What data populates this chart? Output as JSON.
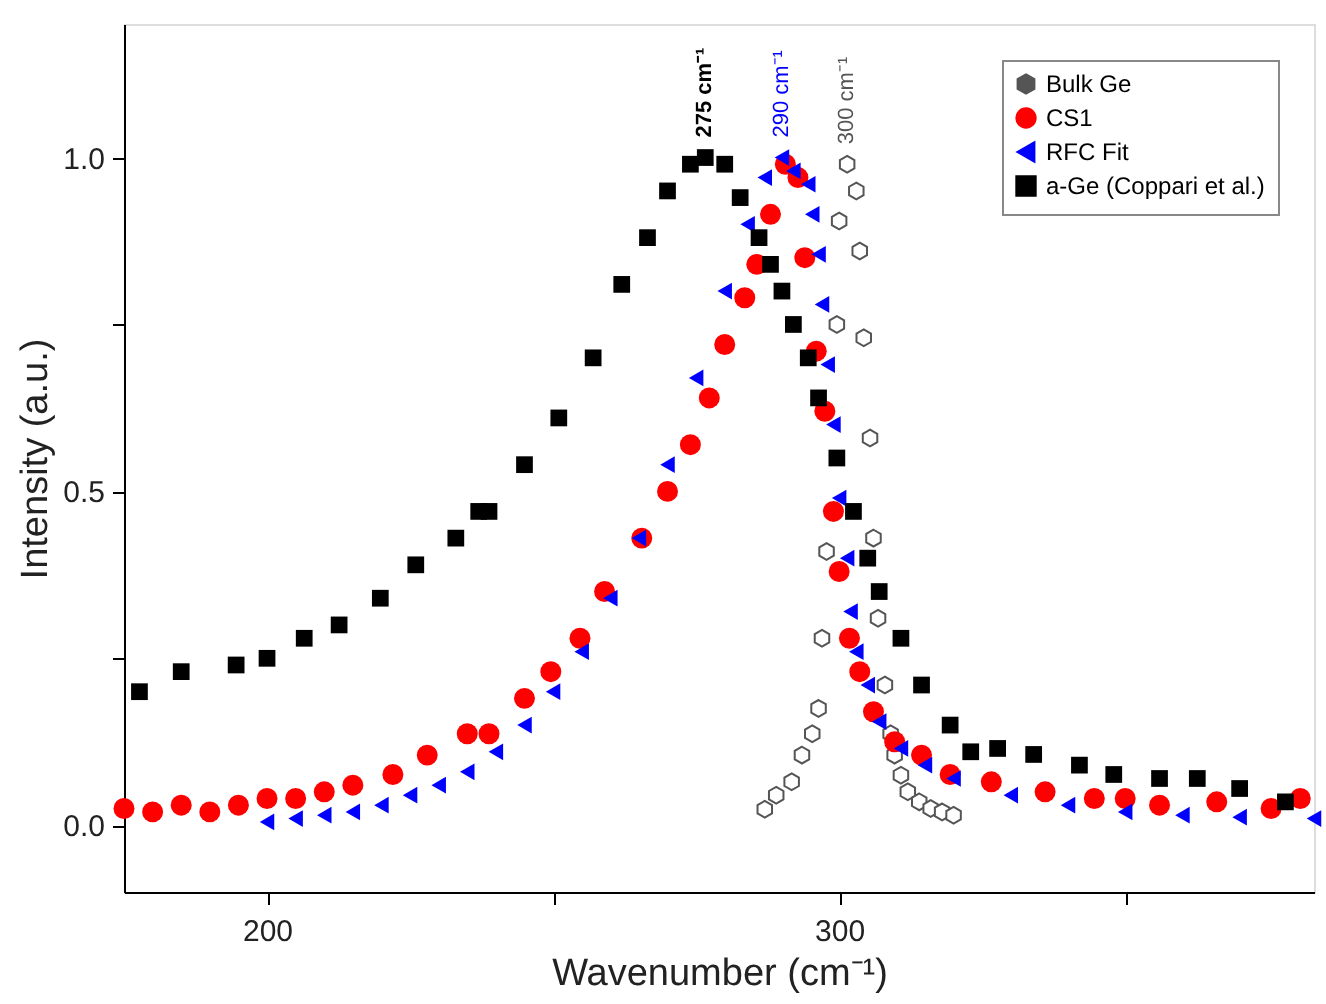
{
  "chart_data": {
    "type": "scatter",
    "xlabel": "Wavenumber (cm⁻¹)",
    "ylabel": "Intensity (a.u.)",
    "xlim": [
      175,
      383
    ],
    "ylim": [
      -0.1,
      1.2
    ],
    "xticks": [
      200,
      {
        "value": 250,
        "label": null
      },
      300,
      {
        "value": 350,
        "label": null
      }
    ],
    "yticks": [
      {
        "value": 0,
        "label": "0.0"
      },
      {
        "value": 0.25,
        "label": null
      },
      {
        "value": 0.5,
        "label": "0.5"
      },
      {
        "value": 0.75,
        "label": null
      },
      {
        "value": 1.0,
        "label": "1.0"
      }
    ],
    "grid": false,
    "legend": "top right",
    "annotations": [
      {
        "text": "275 cm⁻¹",
        "x": 276.6,
        "y": 1.0
      },
      {
        "text": "290 cm⁻¹",
        "x": 290,
        "y": 1.0
      },
      {
        "text": "300 cm⁻¹",
        "x": 301.4,
        "y": 0.99
      }
    ],
    "series": [
      {
        "name": "Bulk Ge",
        "color": "#555555",
        "x": [
          287,
          289,
          291.7,
          293.5,
          295.3,
          296.4,
          297,
          297.8,
          299.6,
          300,
          301.4,
          303,
          303.6,
          304.3,
          305.4,
          306,
          306.8,
          308,
          309,
          309.7,
          310.8,
          312,
          314,
          316,
          318,
          320
        ],
        "values": [
          0.024,
          0.045,
          0.065,
          0.105,
          0.137,
          0.175,
          0.28,
          0.41,
          0.75,
          0.905,
          0.99,
          0.95,
          0.86,
          0.73,
          0.58,
          0.43,
          0.31,
          0.21,
          0.137,
          0.105,
          0.075,
          0.05,
          0.035,
          0.025,
          0.02,
          0.015
        ]
      },
      {
        "name": "CS1",
        "color": "#ff0000",
        "marker": "circle",
        "x": [
          175,
          180,
          185,
          190,
          195,
          200,
          205,
          210,
          215,
          222,
          228,
          235,
          238.8,
          245,
          249.6,
          254.7,
          259,
          265.5,
          270,
          274,
          277.3,
          280,
          283.5,
          285.6,
          288,
          290.6,
          292.8,
          294,
          296,
          297.5,
          299,
          300,
          301.8,
          303.6,
          306,
          309.7,
          314.4,
          319.4,
          326.6,
          336,
          344.6,
          350,
          356,
          366,
          375.5,
          380.6
        ],
        "values": [
          0.025,
          0.02,
          0.03,
          0.02,
          0.03,
          0.04,
          0.04,
          0.05,
          0.06,
          0.076,
          0.105,
          0.137,
          0.137,
          0.19,
          0.23,
          0.28,
          0.35,
          0.43,
          0.5,
          0.57,
          0.64,
          0.72,
          0.79,
          0.84,
          0.915,
          0.99,
          0.97,
          0.85,
          0.71,
          0.62,
          0.47,
          0.38,
          0.28,
          0.23,
          0.17,
          0.125,
          0.105,
          0.076,
          0.065,
          0.05,
          0.04,
          0.04,
          0.03,
          0.035,
          0.025,
          0.04
        ]
      },
      {
        "name": "RFC Fit",
        "color": "#0000ff",
        "marker": "triangle",
        "x": [
          200,
          205,
          210,
          215,
          220,
          225,
          230,
          235,
          240,
          245,
          250,
          255,
          260,
          265,
          270,
          275,
          280,
          284,
          287,
          290,
          292,
          294.6,
          295.3,
          296.4,
          297,
          298,
          299,
          300,
          301.4,
          302,
          303,
          305,
          307,
          310.8,
          315,
          320,
          330,
          340,
          350,
          360,
          370,
          383
        ],
        "values": [
          0.005,
          0.01,
          0.015,
          0.02,
          0.03,
          0.045,
          0.06,
          0.08,
          0.11,
          0.15,
          0.2,
          0.26,
          0.34,
          0.43,
          0.54,
          0.67,
          0.8,
          0.9,
          0.97,
          1.0,
          0.98,
          0.96,
          0.915,
          0.855,
          0.78,
          0.69,
          0.6,
          0.49,
          0.4,
          0.32,
          0.26,
          0.21,
          0.155,
          0.115,
          0.09,
          0.07,
          0.045,
          0.03,
          0.02,
          0.015,
          0.012,
          0.01
        ]
      },
      {
        "name": "a-Ge (Coppari et al.)",
        "color": "#000000",
        "marker": "square",
        "x": [
          177.7,
          185,
          194.6,
          200,
          206.5,
          212.6,
          219.8,
          226,
          233,
          237,
          238.8,
          245,
          251,
          257,
          262,
          266.5,
          270,
          274,
          276.6,
          280,
          282.7,
          286,
          288,
          290,
          292,
          294.6,
          296.4,
          299.6,
          302.5,
          305,
          307,
          310.8,
          314.4,
          319.4,
          323,
          327.7,
          334,
          342,
          348,
          356,
          362.6,
          370,
          378
        ],
        "values": [
          0.2,
          0.23,
          0.24,
          0.25,
          0.28,
          0.3,
          0.34,
          0.39,
          0.43,
          0.47,
          0.47,
          0.54,
          0.61,
          0.7,
          0.81,
          0.88,
          0.95,
          0.99,
          1.0,
          0.99,
          0.94,
          0.88,
          0.84,
          0.8,
          0.75,
          0.7,
          0.64,
          0.55,
          0.47,
          0.4,
          0.35,
          0.28,
          0.21,
          0.15,
          0.11,
          0.115,
          0.106,
          0.09,
          0.076,
          0.07,
          0.07,
          0.055,
          0.035
        ]
      }
    ]
  }
}
